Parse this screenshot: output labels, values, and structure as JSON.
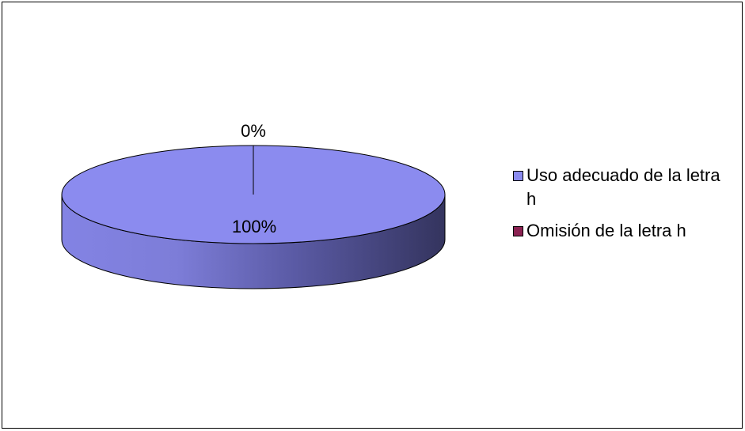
{
  "chart_data": {
    "type": "pie",
    "style": "3d",
    "categories": [
      "Uso adecuado de la letra h",
      "Omisión de la letra h"
    ],
    "values": [
      100,
      0
    ],
    "data_labels": [
      "100%",
      "0%"
    ],
    "colors": [
      "#8b8bef",
      "#8b2252"
    ],
    "side_shadow_color": "#34345e",
    "legend_position": "right"
  }
}
